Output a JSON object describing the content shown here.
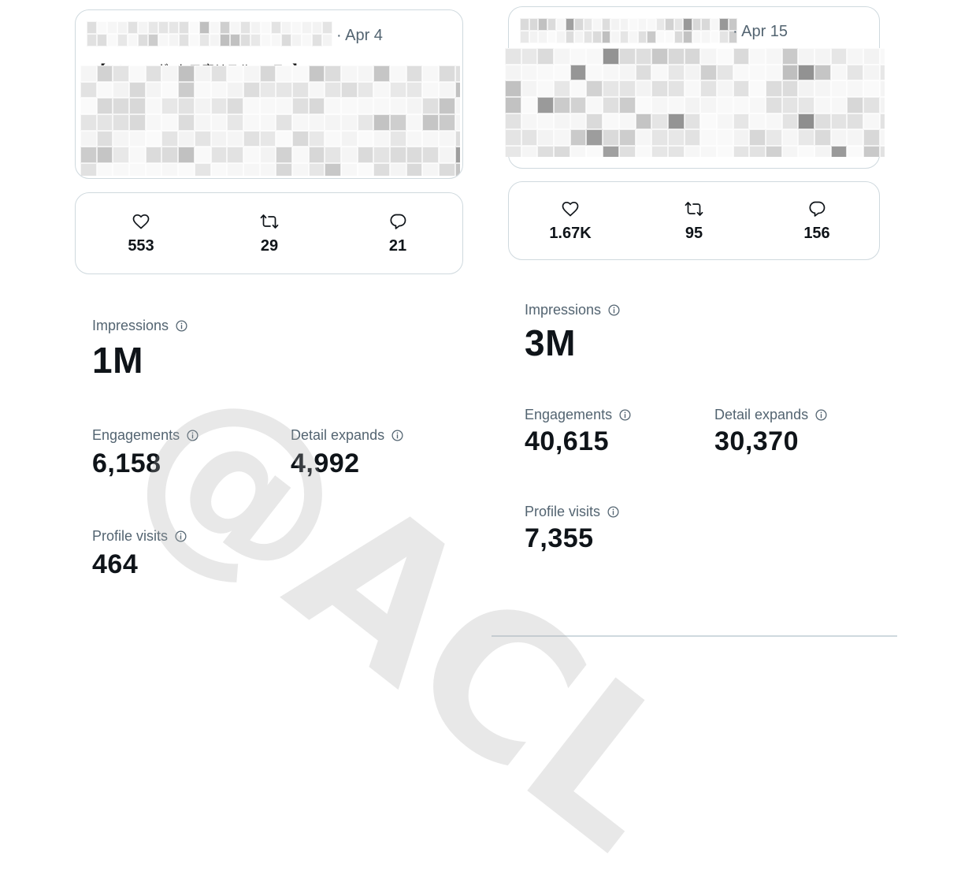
{
  "left": {
    "tweet": {
      "date": "· Apr 4",
      "snippet": "【ココニ···ガ□ト二店リスル□…ス□】"
    },
    "stats": {
      "likes": "553",
      "retweets": "29",
      "replies": "21"
    },
    "metrics": {
      "impressions_label": "Impressions",
      "impressions": "1M",
      "engagements_label": "Engagements",
      "engagements": "6,158",
      "detail_expands_label": "Detail expands",
      "detail_expands": "4,992",
      "profile_visits_label": "Profile visits",
      "profile_visits": "464"
    }
  },
  "right": {
    "tweet": {
      "date": "· Apr 15"
    },
    "stats": {
      "likes": "1.67K",
      "retweets": "95",
      "replies": "156"
    },
    "metrics": {
      "impressions_label": "Impressions",
      "impressions": "3M",
      "engagements_label": "Engagements",
      "engagements": "40,615",
      "detail_expands_label": "Detail expands",
      "detail_expands": "30,370",
      "profile_visits_label": "Profile visits",
      "profile_visits": "7,355"
    }
  },
  "watermark": "@ACL",
  "icons": {
    "like": "heart-icon",
    "retweet": "retweet-icon",
    "reply": "reply-icon",
    "info": "info-icon"
  },
  "colors": {
    "text": "#0f1419",
    "secondary": "#536471",
    "border": "#cfd9de"
  }
}
